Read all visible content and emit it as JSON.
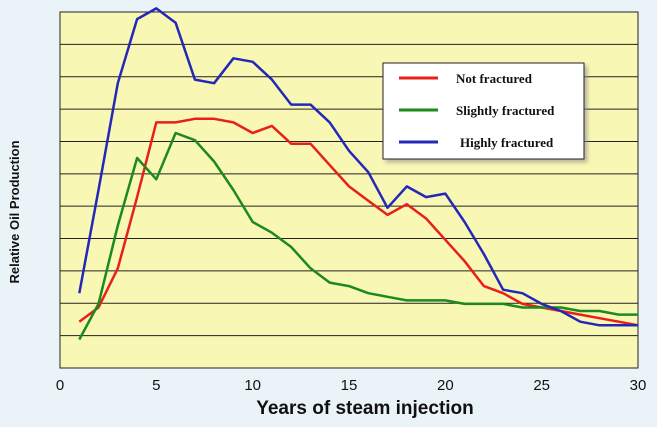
{
  "chart_data": {
    "type": "line",
    "xlabel": "Years of steam injection",
    "ylabel": "Relative Oil Production",
    "xlim": [
      0,
      30
    ],
    "ylim": [
      0,
      10
    ],
    "xticks": [
      0,
      5,
      10,
      15,
      20,
      25,
      30
    ],
    "grid": "horizontal",
    "background_color": "#f9f7b4",
    "legend_position": "top-right",
    "series": [
      {
        "name": "Not fractured",
        "color": "#e8201a",
        "x": [
          1,
          2,
          3,
          4,
          5,
          6,
          7,
          8,
          9,
          10,
          11,
          12,
          13,
          14,
          15,
          16,
          17,
          18,
          19,
          20,
          21,
          22,
          23,
          24,
          25,
          26,
          27,
          28,
          29,
          30
        ],
        "y": [
          1.3,
          1.7,
          2.8,
          4.8,
          6.9,
          6.9,
          7.0,
          7.0,
          6.9,
          6.6,
          6.8,
          6.3,
          6.3,
          5.7,
          5.1,
          4.7,
          4.3,
          4.6,
          4.2,
          3.6,
          3.0,
          2.3,
          2.1,
          1.8,
          1.7,
          1.6,
          1.5,
          1.4,
          1.3,
          1.2
        ]
      },
      {
        "name": "Slightly fractured",
        "color": "#1c8a1c",
        "x": [
          1,
          2,
          3,
          4,
          5,
          6,
          7,
          8,
          9,
          10,
          11,
          12,
          13,
          14,
          15,
          16,
          17,
          18,
          19,
          20,
          21,
          22,
          23,
          24,
          25,
          26,
          27,
          28,
          29,
          30
        ],
        "y": [
          0.8,
          1.8,
          4.0,
          5.9,
          5.3,
          6.6,
          6.4,
          5.8,
          5.0,
          4.1,
          3.8,
          3.4,
          2.8,
          2.4,
          2.3,
          2.1,
          2.0,
          1.9,
          1.9,
          1.9,
          1.8,
          1.8,
          1.8,
          1.7,
          1.7,
          1.7,
          1.6,
          1.6,
          1.5,
          1.5
        ]
      },
      {
        "name": "Highly fractured",
        "color": "#2328b8",
        "x": [
          1,
          2,
          3,
          4,
          5,
          6,
          7,
          8,
          9,
          10,
          11,
          12,
          13,
          14,
          15,
          16,
          17,
          18,
          19,
          20,
          21,
          22,
          23,
          24,
          25,
          26,
          27,
          28,
          29,
          30
        ],
        "y": [
          2.1,
          5.0,
          8.0,
          9.8,
          10.1,
          9.7,
          8.1,
          8.0,
          8.7,
          8.6,
          8.1,
          7.4,
          7.4,
          6.9,
          6.1,
          5.5,
          4.5,
          5.1,
          4.8,
          4.9,
          4.1,
          3.2,
          2.2,
          2.1,
          1.8,
          1.6,
          1.3,
          1.2,
          1.2,
          1.2
        ]
      }
    ]
  }
}
